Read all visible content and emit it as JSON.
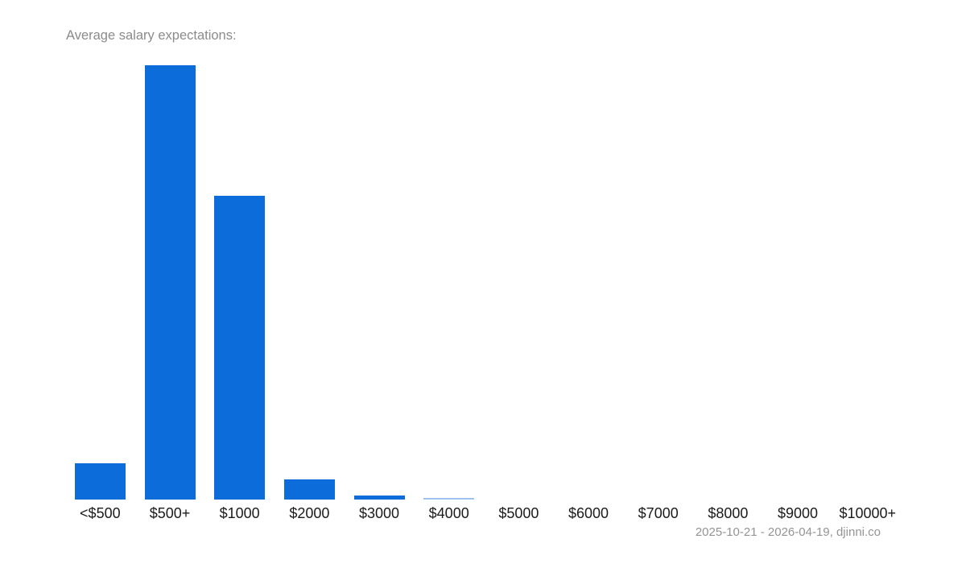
{
  "title": "Average salary expectations:",
  "caption": "2025-10-21 - 2026-04-19, djinni.co",
  "colors": {
    "bar_default": "#0c6cda",
    "bar_light": "#9fc3f0",
    "title_text": "#8b8b8b",
    "caption_text": "#949494",
    "axis_label_text": "#1b1b1b",
    "background": "#ffffff"
  },
  "chart_data": {
    "type": "bar",
    "title": "Average salary expectations:",
    "caption": "2025-10-21 - 2026-04-19, djinni.co",
    "categories": [
      "<$500",
      "$500+",
      "$1000",
      "$2000",
      "$3000",
      "$4000",
      "$5000",
      "$6000",
      "$7000",
      "$8000",
      "$9000",
      "$10000+"
    ],
    "values": [
      8.3,
      100,
      70,
      4.6,
      0.9,
      0.35,
      0,
      0,
      0,
      0,
      0,
      0
    ],
    "unit": "relative bar height, % of tallest bar",
    "bar_colors": [
      "#0c6cda",
      "#0c6cda",
      "#0c6cda",
      "#0c6cda",
      "#0c6cda",
      "#9fc3f0",
      "#0c6cda",
      "#0c6cda",
      "#0c6cda",
      "#0c6cda",
      "#0c6cda",
      "#0c6cda"
    ],
    "xlabel": "",
    "ylabel": "",
    "ylim": [
      0,
      100
    ],
    "grid": false,
    "legend": "none",
    "axis_lines": false
  }
}
